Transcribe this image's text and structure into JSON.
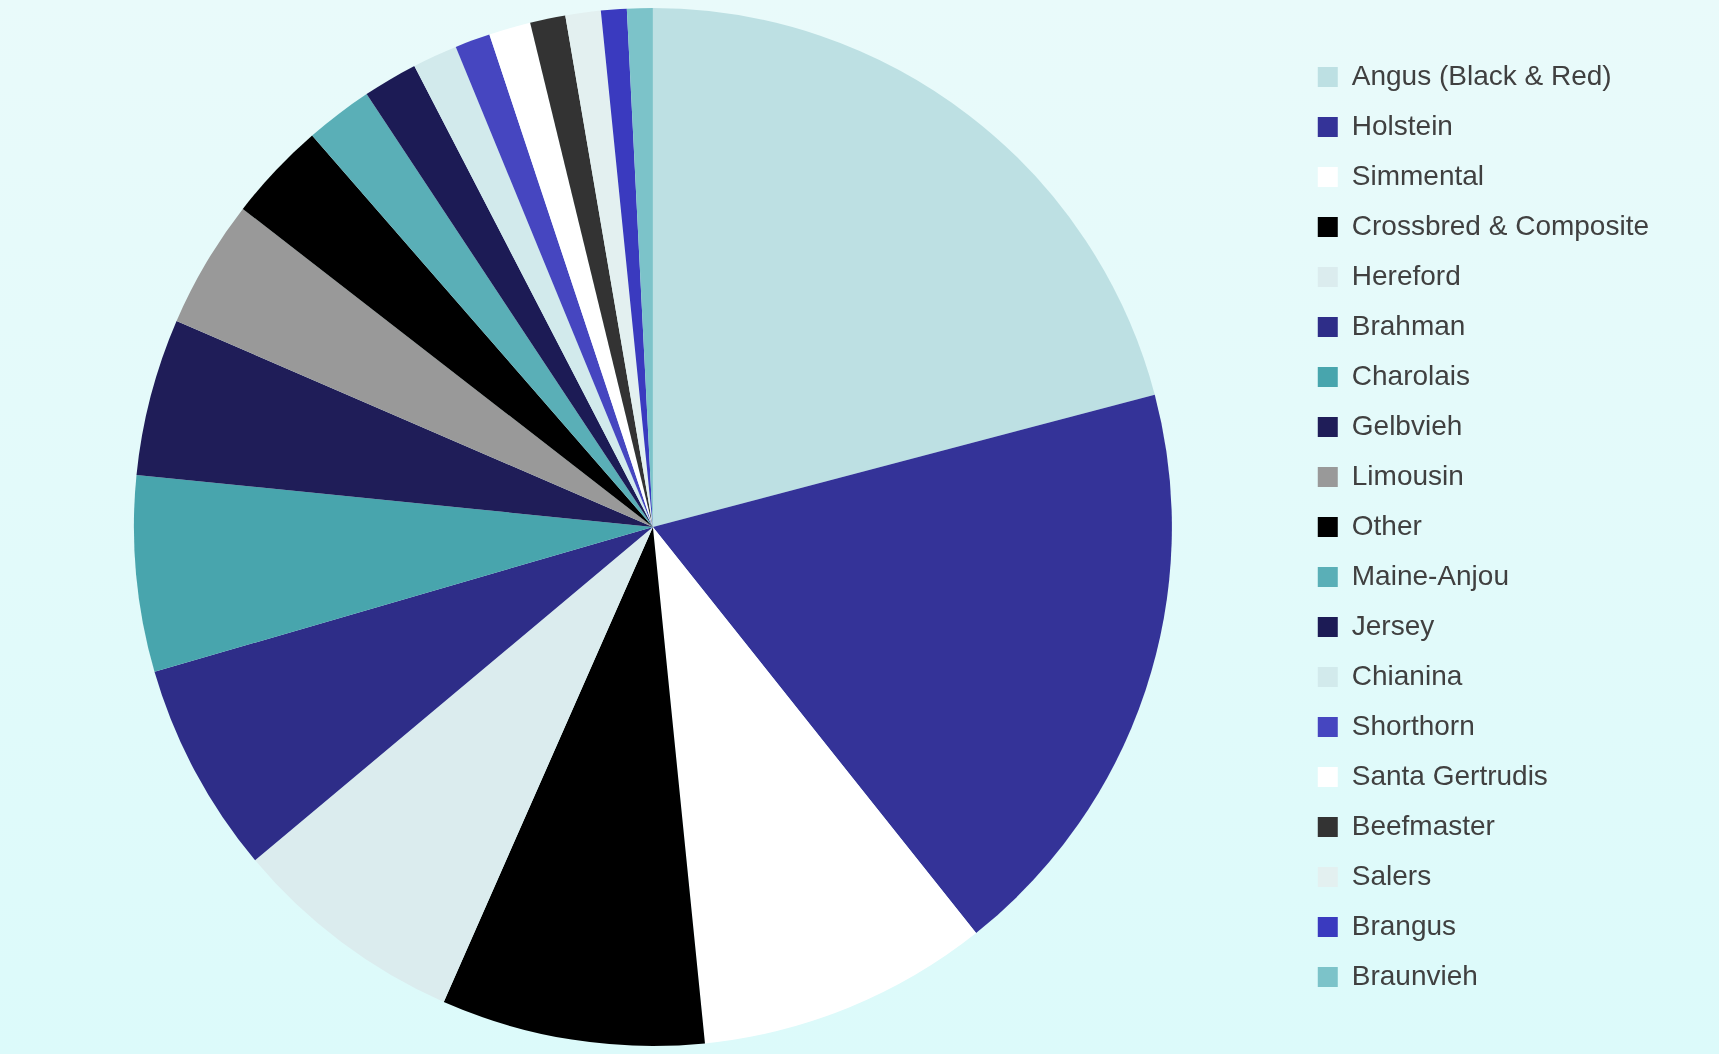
{
  "chart_data": {
    "type": "pie",
    "legend": "right",
    "categories": [
      "Angus (Black & Red)",
      "Holstein",
      "Simmental",
      "Crossbred & Composite",
      "Hereford",
      "Brahman",
      "Charolais",
      "Gelbvieh",
      "Limousin",
      "Other",
      "Maine-Anjou",
      "Jersey",
      "Chianina",
      "Shorthorn",
      "Santa Gertrudis",
      "Beefmaster",
      "Salers",
      "Brangus",
      "Braunvieh"
    ],
    "values": [
      20.9,
      18.4,
      9.1,
      8.2,
      7.3,
      6.6,
      6.1,
      4.9,
      4.0,
      3.1,
      2.1,
      1.7,
      1.4,
      1.1,
      1.3,
      1.1,
      1.1,
      0.8,
      0.8
    ],
    "colors": [
      "#bde0e3",
      "#343398",
      "#ffffff",
      "#000000",
      "#dbecee",
      "#2e2d88",
      "#48a5ad",
      "#1f1d58",
      "#999999",
      "#000000",
      "#5aafb7",
      "#1c1b55",
      "#d2eaec",
      "#4646c0",
      "#ffffff",
      "#333333",
      "#e3f0f0",
      "#3a3abf",
      "#7cc3c9"
    ]
  }
}
